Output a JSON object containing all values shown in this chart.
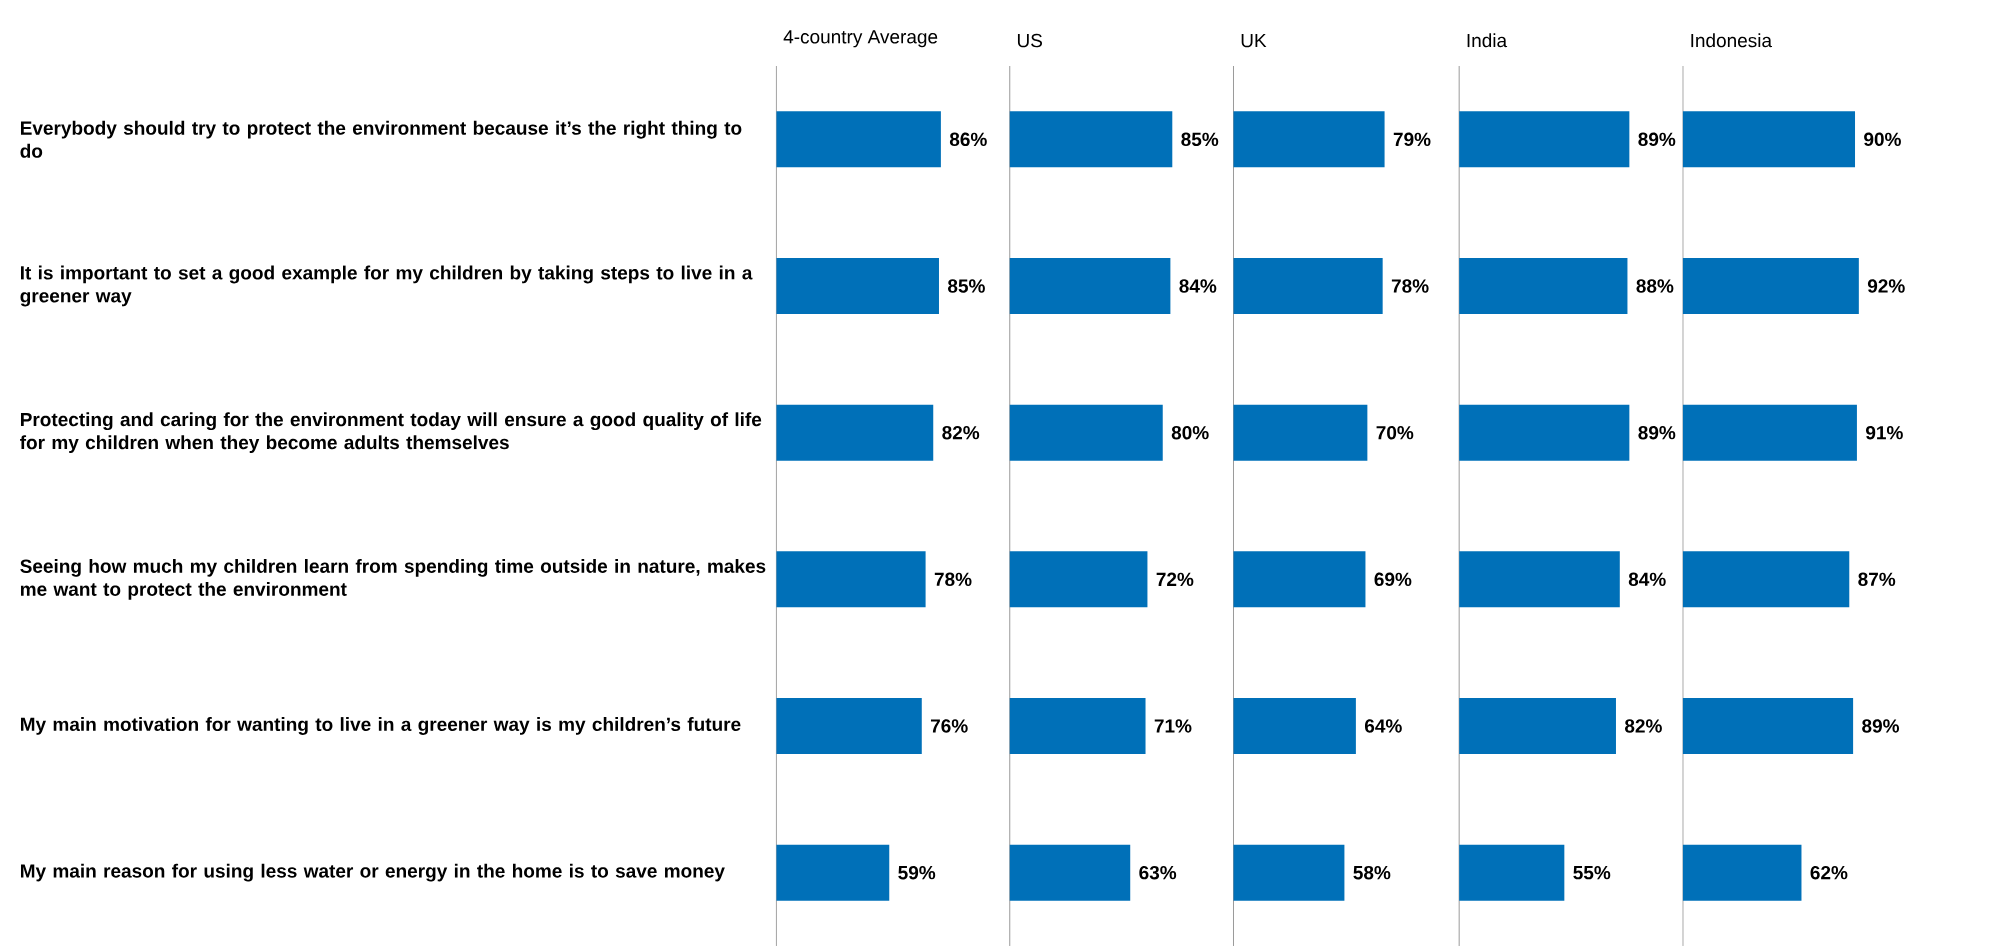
{
  "chart_data": [
    {
      "type": "bar",
      "orientation": "horizontal",
      "title": "4-country Average",
      "tick_labels": "y",
      "color": "#0070b8",
      "categories": [
        "Everybody should try to protect the environment because it’s the right thing to do",
        "It is important to set a good example for my children by taking steps to live in a greener way",
        "Protecting and caring for the environment today will ensure a good quality of life for my children when they become adults themselves",
        "Seeing how much my children learn from spending time outside in nature, makes me want to protect the environment",
        "My main motivation for wanting to live in a greener way is my children’s future",
        "My main reason for using less water or energy in the home is to save money"
      ],
      "values": [
        86,
        85,
        82,
        78,
        76,
        59
      ],
      "value_labels": [
        "86%",
        "85%",
        "82%",
        "78%",
        "76%",
        "59%"
      ]
    },
    {
      "type": "bar",
      "orientation": "horizontal",
      "title": "US",
      "tick_labels": false,
      "color": "#0070b8",
      "categories": [
        null,
        null,
        null,
        null,
        null,
        null
      ],
      "values": [
        85,
        84,
        80,
        72,
        71,
        63
      ],
      "value_labels": [
        "85%",
        "84%",
        "80%",
        "72%",
        "71%",
        "63%"
      ]
    },
    {
      "type": "bar",
      "orientation": "horizontal",
      "title": "UK",
      "tick_labels": false,
      "color": "#0070b8",
      "categories": [
        null,
        null,
        null,
        null,
        null,
        null
      ],
      "values": [
        79,
        78,
        70,
        69,
        64,
        58
      ],
      "value_labels": [
        "79%",
        "78%",
        "70%",
        "69%",
        "64%",
        "58%"
      ]
    },
    {
      "type": "bar",
      "orientation": "horizontal",
      "title": "India",
      "tick_labels": false,
      "color": "#0070b8",
      "categories": [
        null,
        null,
        null,
        null,
        null,
        null
      ],
      "values": [
        89,
        88,
        89,
        84,
        82,
        55
      ],
      "value_labels": [
        "89%",
        "88%",
        "89%",
        "84%",
        "82%",
        "55%"
      ]
    },
    {
      "type": "bar",
      "orientation": "horizontal",
      "title": "Indonesia",
      "tick_labels": false,
      "color": "#0070b8",
      "categories": [
        null,
        null,
        null,
        null,
        null,
        null
      ],
      "values": [
        90,
        92,
        91,
        87,
        89,
        62
      ],
      "value_labels": [
        "90%",
        "92%",
        "91%",
        "87%",
        "89%",
        "62%"
      ]
    }
  ]
}
